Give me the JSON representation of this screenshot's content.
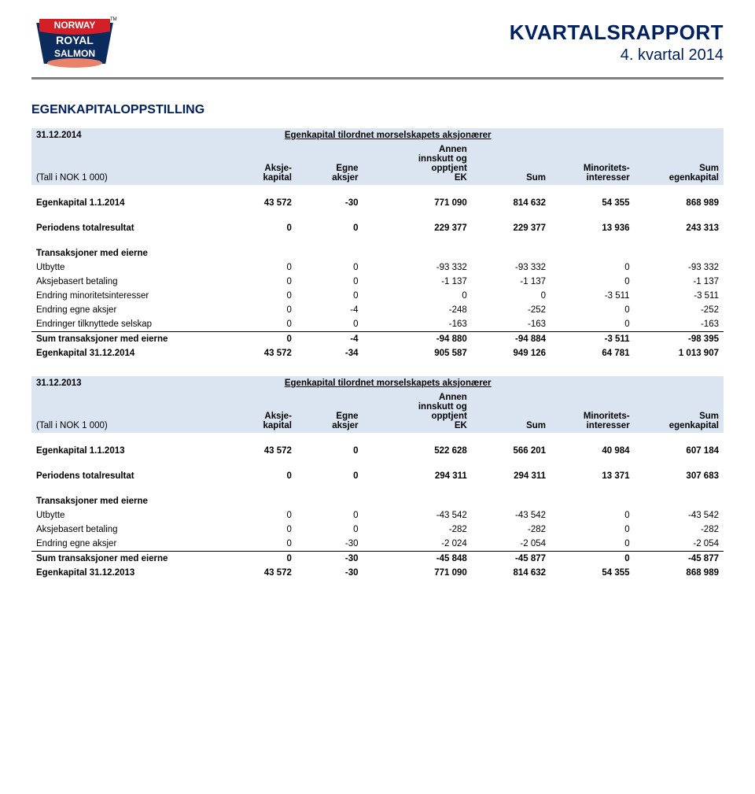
{
  "header": {
    "title": "KVARTALSRAPPORT",
    "subtitle": "4. kvartal 2014",
    "logo_top": "NORWAY",
    "logo_mid": "ROYAL",
    "logo_bot": "SALMON"
  },
  "section_title": "EGENKAPITALOPPSTILLING",
  "colors": {
    "accent": "#002060",
    "header_bg": "#dbe5f1",
    "logo_red": "#d32028",
    "logo_blue": "#0a2b5c",
    "logo_salmon": "#e8826b",
    "rule": "#808080"
  },
  "cols": {
    "c1": "Aksje-\nkapital",
    "c2": "Egne\naksjer",
    "c3": "Annen\ninnskutt og\nopptjent\nEK",
    "c4": "Sum",
    "c5": "Minoritets-\ninteresser",
    "c6": "Sum\negenkapital",
    "super": "Egenkapital tilordnet morselskapets aksjonærer",
    "unit": "(Tall i NOK 1 000)"
  },
  "t1": {
    "date": "31.12.2014",
    "open": {
      "label": "Egenkapital 1.1.2014",
      "v": [
        "43 572",
        "-30",
        "771 090",
        "814 632",
        "54 355",
        "868 989"
      ]
    },
    "result": {
      "label": "Periodens totalresultat",
      "v": [
        "0",
        "0",
        "229 377",
        "229 377",
        "13 936",
        "243 313"
      ]
    },
    "trans_head": "Transaksjoner med eierne",
    "rows": [
      {
        "label": "Utbytte",
        "v": [
          "0",
          "0",
          "-93 332",
          "-93 332",
          "0",
          "-93 332"
        ]
      },
      {
        "label": "Aksjebasert betaling",
        "v": [
          "0",
          "0",
          "-1 137",
          "-1 137",
          "0",
          "-1 137"
        ]
      },
      {
        "label": "Endring minoritetsinteresser",
        "v": [
          "0",
          "0",
          "0",
          "0",
          "-3 511",
          "-3 511"
        ]
      },
      {
        "label": "Endring egne aksjer",
        "v": [
          "0",
          "-4",
          "-248",
          "-252",
          "0",
          "-252"
        ]
      },
      {
        "label": "Endringer tilknyttede selskap",
        "v": [
          "0",
          "0",
          "-163",
          "-163",
          "0",
          "-163"
        ]
      }
    ],
    "sumtrans": {
      "label": "Sum transaksjoner med eierne",
      "v": [
        "0",
        "-4",
        "-94 880",
        "-94 884",
        "-3 511",
        "-98 395"
      ]
    },
    "close": {
      "label": "Egenkapital 31.12.2014",
      "v": [
        "43 572",
        "-34",
        "905 587",
        "949 126",
        "64 781",
        "1 013 907"
      ]
    }
  },
  "t2": {
    "date": "31.12.2013",
    "open": {
      "label": "Egenkapital 1.1.2013",
      "v": [
        "43 572",
        "0",
        "522 628",
        "566 201",
        "40 984",
        "607 184"
      ]
    },
    "result": {
      "label": "Periodens totalresultat",
      "v": [
        "0",
        "0",
        "294 311",
        "294 311",
        "13 371",
        "307 683"
      ]
    },
    "trans_head": "Transaksjoner med eierne",
    "rows": [
      {
        "label": "Utbytte",
        "v": [
          "0",
          "0",
          "-43 542",
          "-43 542",
          "0",
          "-43 542"
        ]
      },
      {
        "label": "Aksjebasert betaling",
        "v": [
          "0",
          "0",
          "-282",
          "-282",
          "0",
          "-282"
        ]
      },
      {
        "label": "Endring egne aksjer",
        "v": [
          "0",
          "-30",
          "-2 024",
          "-2 054",
          "0",
          "-2 054"
        ]
      }
    ],
    "sumtrans": {
      "label": "Sum transaksjoner med eierne",
      "v": [
        "0",
        "-30",
        "-45 848",
        "-45 877",
        "0",
        "-45 877"
      ]
    },
    "close": {
      "label": "Egenkapital 31.12.2013",
      "v": [
        "43 572",
        "-30",
        "771 090",
        "814 632",
        "54 355",
        "868 989"
      ]
    }
  }
}
